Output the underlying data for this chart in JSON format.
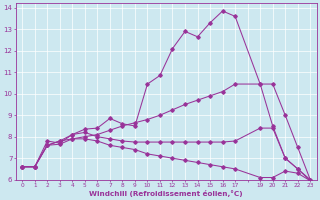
{
  "xlabel": "Windchill (Refroidissement éolien,°C)",
  "bg_color": "#cde8f0",
  "line_color": "#993399",
  "xlim": [
    -0.5,
    23.5
  ],
  "ylim": [
    6,
    14.2
  ],
  "yticks": [
    6,
    7,
    8,
    9,
    10,
    11,
    12,
    13,
    14
  ],
  "xtick_labels": [
    "0",
    "1",
    "2",
    "3",
    "4",
    "5",
    "6",
    "7",
    "8",
    "9",
    "10",
    "11",
    "12",
    "13",
    "14",
    "15",
    "16",
    "17",
    "",
    "19",
    "20",
    "21",
    "22",
    "23"
  ],
  "xtick_positions": [
    0,
    1,
    2,
    3,
    4,
    5,
    6,
    7,
    8,
    9,
    10,
    11,
    12,
    13,
    14,
    15,
    16,
    17,
    18,
    19,
    20,
    21,
    22,
    23
  ],
  "series": [
    {
      "x": [
        0,
        1,
        2,
        3,
        4,
        5,
        6,
        7,
        8,
        9,
        10,
        11,
        12,
        13,
        14,
        15,
        16,
        17,
        19,
        20,
        21,
        22,
        23
      ],
      "y": [
        6.6,
        6.6,
        7.8,
        7.7,
        8.1,
        8.35,
        8.4,
        8.85,
        8.6,
        8.5,
        10.45,
        10.85,
        12.1,
        12.9,
        12.65,
        13.3,
        13.85,
        13.6,
        10.45,
        8.5,
        7.0,
        6.5,
        5.95
      ]
    },
    {
      "x": [
        0,
        1,
        2,
        3,
        4,
        5,
        6,
        7,
        8,
        9,
        10,
        11,
        12,
        13,
        14,
        15,
        16,
        17,
        19,
        20,
        21,
        22,
        23
      ],
      "y": [
        6.6,
        6.6,
        7.6,
        7.8,
        7.9,
        8.0,
        8.1,
        8.3,
        8.5,
        8.65,
        8.8,
        9.0,
        9.25,
        9.5,
        9.7,
        9.9,
        10.1,
        10.45,
        10.45,
        10.45,
        9.0,
        7.5,
        6.0
      ]
    },
    {
      "x": [
        0,
        1,
        2,
        3,
        4,
        5,
        6,
        7,
        8,
        9,
        10,
        11,
        12,
        13,
        14,
        15,
        16,
        17,
        19,
        20,
        21,
        22,
        23
      ],
      "y": [
        6.6,
        6.6,
        7.6,
        7.8,
        8.1,
        8.2,
        8.0,
        7.9,
        7.8,
        7.75,
        7.75,
        7.75,
        7.75,
        7.75,
        7.75,
        7.75,
        7.75,
        7.8,
        8.4,
        8.4,
        7.0,
        6.5,
        6.0
      ]
    },
    {
      "x": [
        0,
        1,
        2,
        3,
        4,
        5,
        6,
        7,
        8,
        9,
        10,
        11,
        12,
        13,
        14,
        15,
        16,
        17,
        19,
        20,
        21,
        22,
        23
      ],
      "y": [
        6.6,
        6.6,
        7.6,
        7.65,
        7.9,
        7.9,
        7.8,
        7.6,
        7.5,
        7.4,
        7.2,
        7.1,
        7.0,
        6.9,
        6.8,
        6.7,
        6.6,
        6.5,
        6.1,
        6.1,
        6.4,
        6.3,
        5.95
      ]
    }
  ]
}
